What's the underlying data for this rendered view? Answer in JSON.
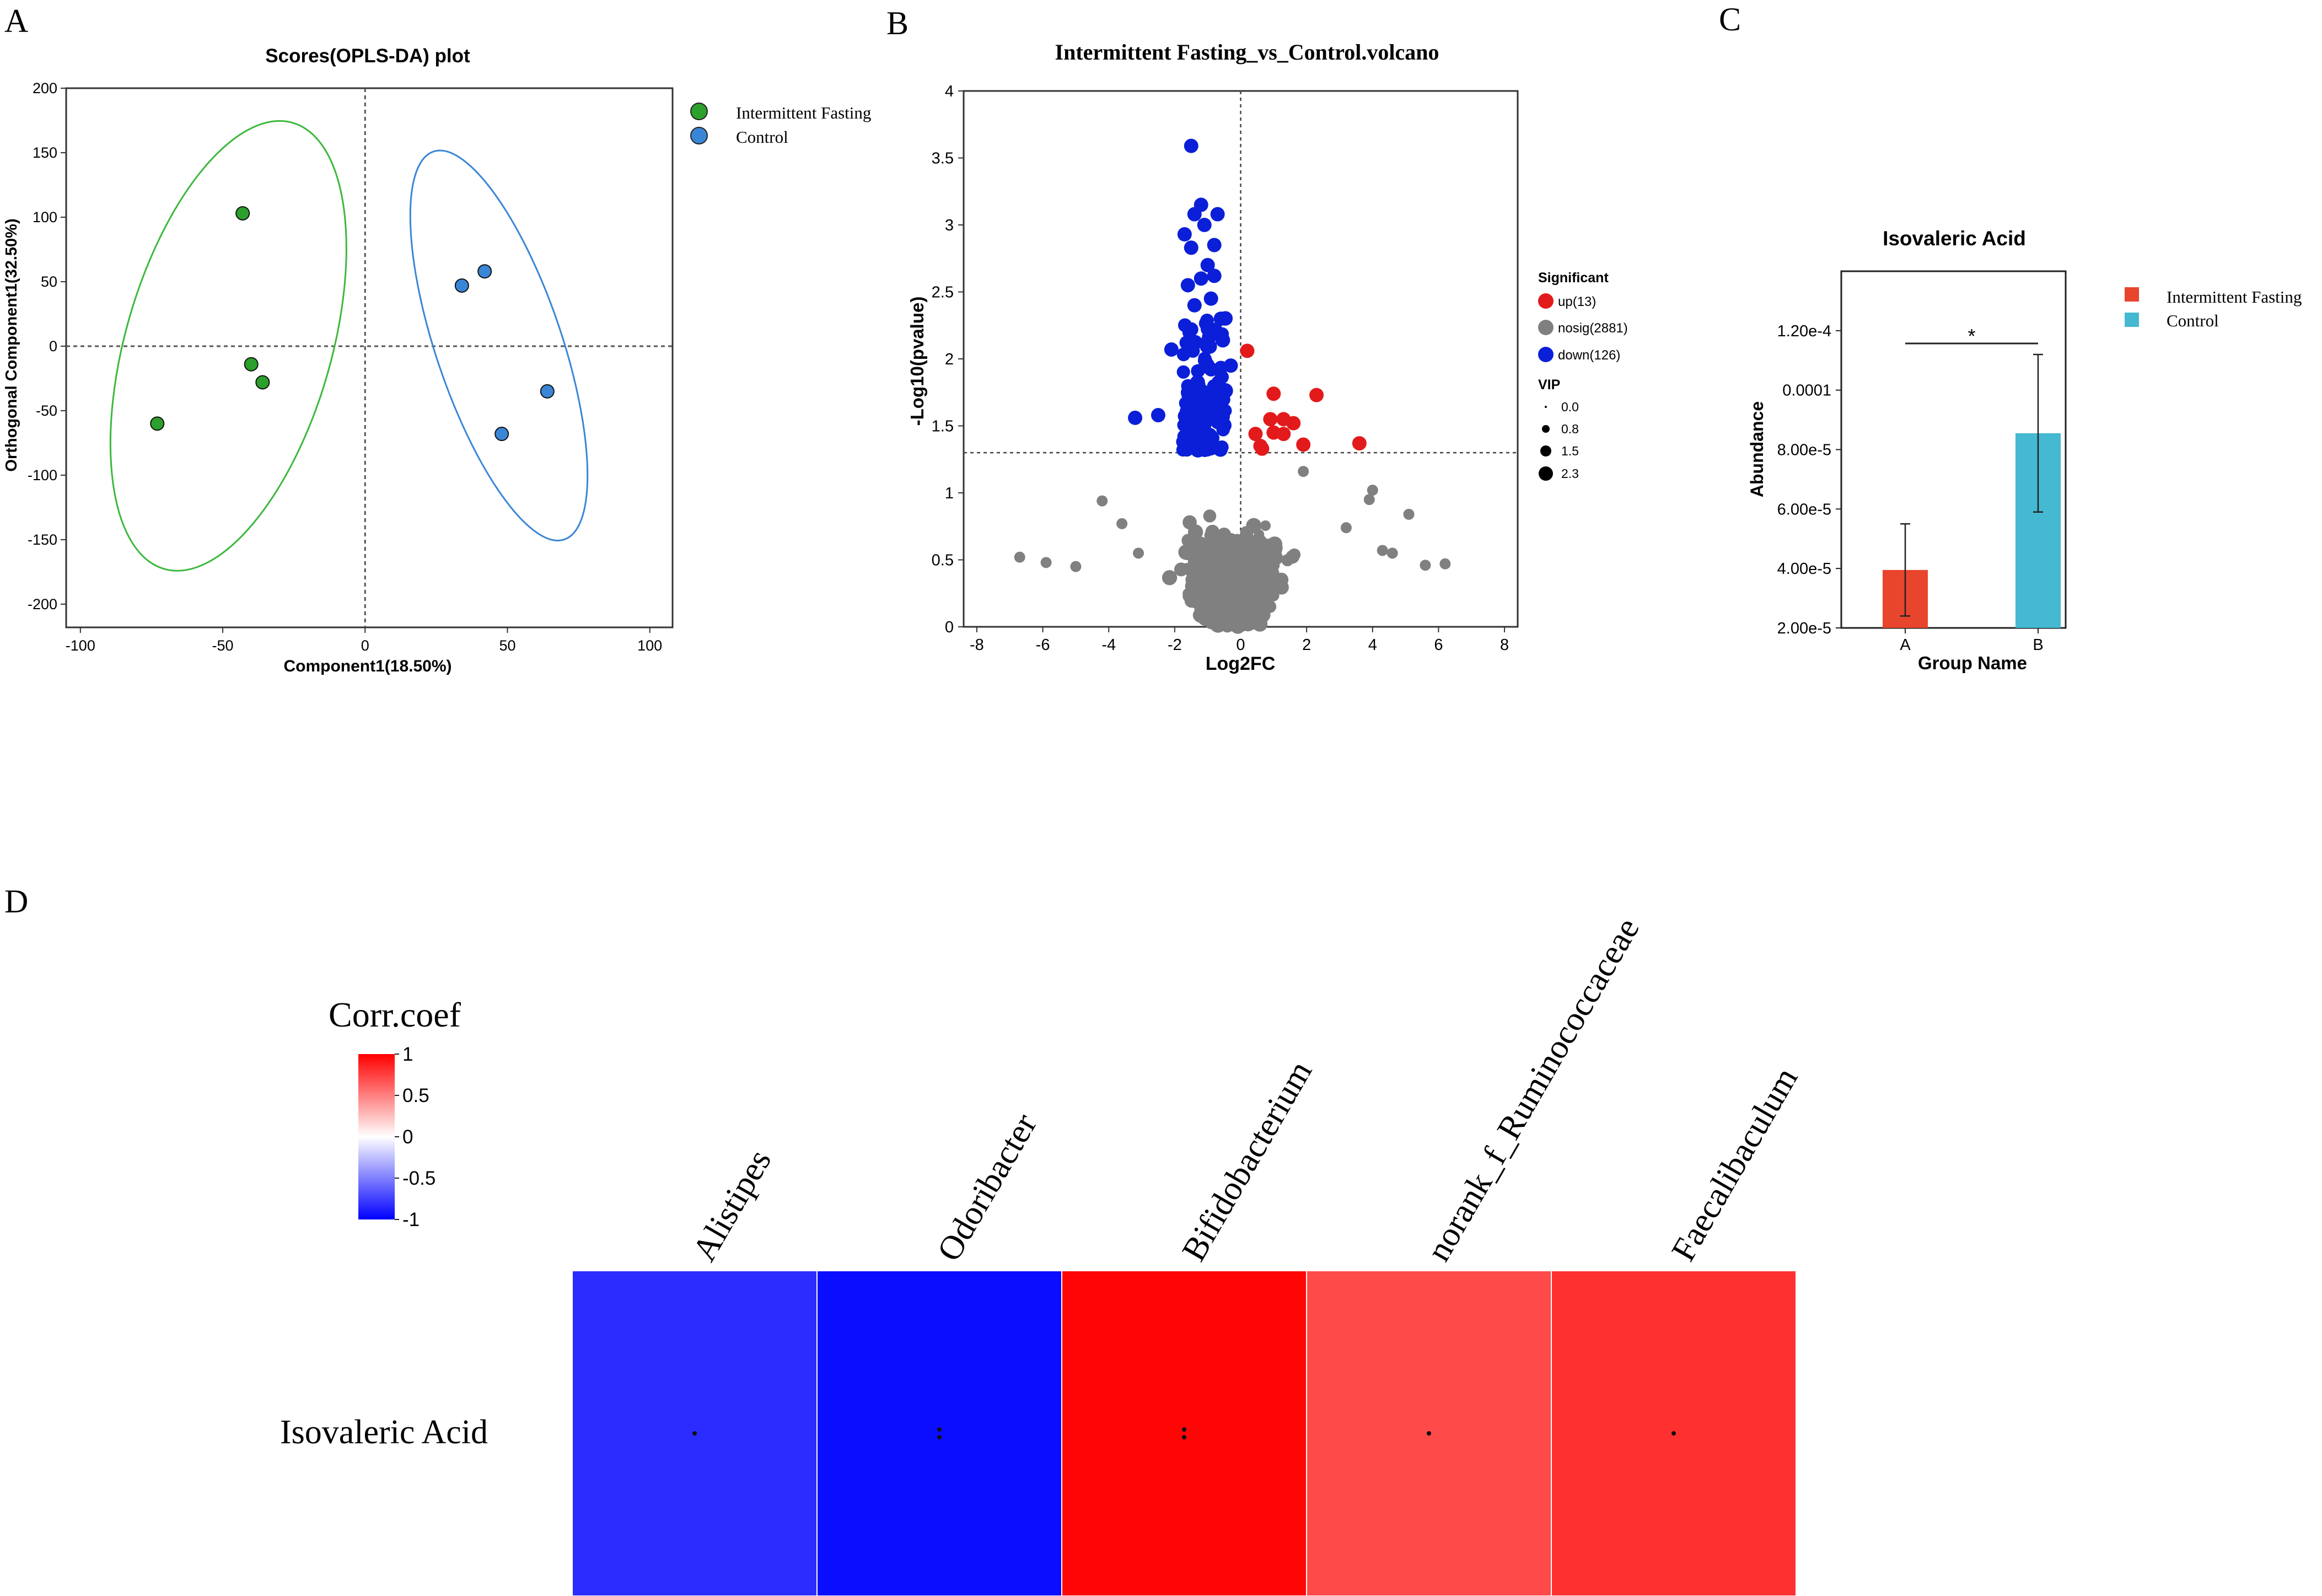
{
  "panels": {
    "a": "A",
    "b": "B",
    "c": "C",
    "d": "D"
  },
  "chart_data": [
    {
      "type": "scatter",
      "panel": "A",
      "title": "Scores(OPLS-DA) plot",
      "xlabel": "Component1(18.50%)",
      "ylabel": "Orthogonal Component1(32.50%)",
      "xlim": [
        -105,
        108
      ],
      "ylim": [
        -218,
        200
      ],
      "xticks": [
        -100,
        -50,
        0,
        50,
        100
      ],
      "yticks": [
        -200,
        -150,
        -100,
        -50,
        0,
        50,
        100,
        150,
        200
      ],
      "legend": [
        "Intermittent Fasting",
        "Control"
      ],
      "series": [
        {
          "name": "Intermittent Fasting",
          "color": "#2ca02c",
          "points": [
            [
              -43,
              103
            ],
            [
              -40,
              -14
            ],
            [
              -36,
              -28
            ],
            [
              -73,
              -60
            ]
          ]
        },
        {
          "name": "Control",
          "color": "#3a86d6",
          "points": [
            [
              34,
              47
            ],
            [
              42,
              58
            ],
            [
              64,
              -35
            ],
            [
              48,
              -68
            ]
          ]
        }
      ],
      "ellipses": [
        {
          "group": "Intermittent Fasting",
          "color": "#3cb83c"
        },
        {
          "group": "Control",
          "color": "#3a86d6"
        }
      ]
    },
    {
      "type": "scatter",
      "panel": "B",
      "title": "Intermittent Fasting_vs_Control.volcano",
      "xlabel": "Log2FC",
      "ylabel": "-Log10(pvalue)",
      "xlim": [
        -8.4,
        8.4
      ],
      "ylim": [
        0,
        4
      ],
      "xticks": [
        -8,
        -6,
        -4,
        -2,
        0,
        2,
        4,
        6,
        8
      ],
      "yticks": [
        0,
        0.5,
        1,
        1.5,
        2,
        2.5,
        3,
        3.5,
        4
      ],
      "threshold_y": 1.3,
      "legend_title": "Significant",
      "legend": [
        "up(13)",
        "nosig(2881)",
        "down(126)"
      ],
      "vip_title": "VIP",
      "vip_levels": [
        "0.0",
        "0.8",
        "1.5",
        "2.3"
      ],
      "counts": {
        "up": 13,
        "nosig": 2881,
        "down": 126
      },
      "colors": {
        "up": "#e31a1c",
        "nosig": "#808080",
        "down": "#0b1fd8"
      },
      "up_points": [
        [
          0.2,
          2.06
        ],
        [
          1.0,
          1.74
        ],
        [
          2.3,
          1.73
        ],
        [
          1.3,
          1.55
        ],
        [
          0.9,
          1.55
        ],
        [
          1.6,
          1.52
        ],
        [
          0.45,
          1.44
        ],
        [
          1.0,
          1.45
        ],
        [
          1.3,
          1.44
        ],
        [
          3.6,
          1.37
        ],
        [
          0.65,
          1.33
        ],
        [
          1.9,
          1.36
        ],
        [
          0.6,
          1.35
        ]
      ],
      "down_highlight": [
        [
          -1.5,
          3.59
        ],
        [
          -1.2,
          3.15
        ],
        [
          -1.4,
          3.08
        ],
        [
          -0.7,
          3.08
        ],
        [
          -1.1,
          3.0
        ],
        [
          -1.7,
          2.93
        ],
        [
          -1.5,
          2.83
        ],
        [
          -0.8,
          2.85
        ],
        [
          -1.0,
          2.7
        ],
        [
          -0.8,
          2.62
        ],
        [
          -1.2,
          2.6
        ],
        [
          -1.6,
          2.55
        ],
        [
          -0.9,
          2.45
        ],
        [
          -1.4,
          2.4
        ],
        [
          -0.6,
          2.3
        ],
        [
          -2.1,
          2.07
        ],
        [
          -1.5,
          2.22
        ],
        [
          -1.0,
          2.13
        ],
        [
          -0.3,
          1.95
        ],
        [
          -2.5,
          1.58
        ],
        [
          -3.2,
          1.56
        ]
      ],
      "nosig_outliers": [
        [
          -6.7,
          0.52
        ],
        [
          -5.0,
          0.45
        ],
        [
          -5.9,
          0.48
        ],
        [
          -4.2,
          0.94
        ],
        [
          -3.6,
          0.77
        ],
        [
          -3.1,
          0.55
        ],
        [
          3.9,
          0.95
        ],
        [
          3.2,
          0.74
        ],
        [
          4.6,
          0.55
        ],
        [
          5.6,
          0.46
        ],
        [
          6.2,
          0.47
        ],
        [
          5.1,
          0.84
        ],
        [
          4.3,
          0.57
        ],
        [
          4.0,
          1.02
        ],
        [
          1.9,
          1.16
        ]
      ]
    },
    {
      "type": "bar",
      "panel": "C",
      "title": "Isovaleric Acid",
      "xlabel": "Group Name",
      "ylabel": "Abundance",
      "categories": [
        "A",
        "B"
      ],
      "values": [
        3.95e-05,
        8.55e-05
      ],
      "errors": [
        1.55e-05,
        2.65e-05
      ],
      "colors": [
        "#e8452d",
        "#45b8d2"
      ],
      "ylim": [
        2e-05,
        0.00014
      ],
      "yticks": [
        2e-05,
        4e-05,
        6e-05,
        8e-05,
        0.0001,
        0.00012
      ],
      "ytick_labels": [
        "2.00e-5",
        "4.00e-5",
        "6.00e-5",
        "8.00e-5",
        "0.0001",
        "1.20e-4"
      ],
      "significance": "*",
      "legend": [
        "Intermittent Fasting",
        "Control"
      ]
    },
    {
      "type": "heatmap",
      "panel": "D",
      "colorbar_title": "Corr.coef",
      "colorbar_ticks": [
        "1",
        "0.5",
        "0",
        "-0.5",
        "-1"
      ],
      "row_labels": [
        "Isovaleric Acid"
      ],
      "col_labels": [
        "Alistipes",
        "Odoribacter",
        "Bifidobacterium",
        "norank_f_Ruminococcaceae",
        "Faecalibaculum"
      ],
      "values": [
        [
          -0.85,
          -0.97,
          0.99,
          0.72,
          0.82
        ]
      ],
      "cell_colors": [
        "#2b2cff",
        "#0a0dff",
        "#ff0505",
        "#ff4a4a",
        "#ff3030"
      ],
      "significance": [
        "*",
        "**",
        "**",
        "*",
        "*"
      ]
    }
  ]
}
